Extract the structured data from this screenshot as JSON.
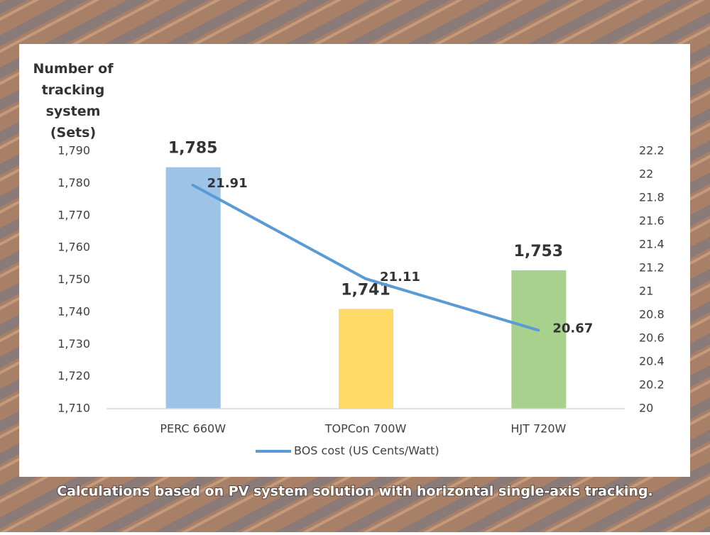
{
  "chart_data": {
    "type": "bar",
    "y_label": "Number of tracking system (Sets)",
    "footnote": "Calculations based on PV system solution with horizontal single-axis tracking.",
    "categories": [
      "PERC 660W",
      "TOPCon 700W",
      "HJT 720W"
    ],
    "series": [
      {
        "type": "bar",
        "values": [
          1785,
          1741,
          1753
        ],
        "value_labels": [
          "1,785",
          "1,741",
          "1,753"
        ],
        "colors": [
          "#9dc3e6",
          "#ffd966",
          "#a9d18e"
        ]
      },
      {
        "type": "line",
        "name": "BOS cost (US Cents/Watt)",
        "color": "#5b9bd5",
        "axis": "y2",
        "values": [
          21.91,
          21.11,
          20.67
        ]
      }
    ],
    "ylim": [
      1710,
      1790
    ],
    "yticks": [
      {
        "value": 1710,
        "label": "1,710"
      },
      {
        "value": 1720,
        "label": "1,720"
      },
      {
        "value": 1730,
        "label": "1,730"
      },
      {
        "value": 1740,
        "label": "1,740"
      },
      {
        "value": 1750,
        "label": "1,750"
      },
      {
        "value": 1760,
        "label": "1,760"
      },
      {
        "value": 1770,
        "label": "1,770"
      },
      {
        "value": 1780,
        "label": "1,780"
      },
      {
        "value": 1790,
        "label": "1,790"
      }
    ],
    "y2lim": [
      20,
      22.2
    ],
    "y2ticks": [
      20,
      20.2,
      20.4,
      20.6,
      20.8,
      21,
      21.2,
      21.4,
      21.6,
      21.8,
      22,
      22.2
    ],
    "grid": false,
    "legend": "bottom"
  }
}
